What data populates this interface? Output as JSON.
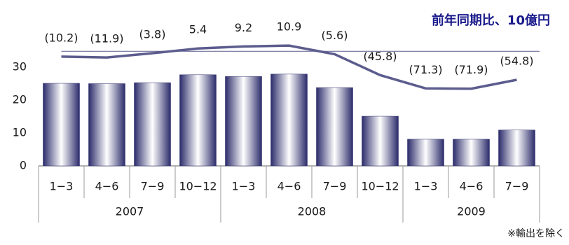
{
  "chart_data": {
    "type": "bar-line",
    "title": "前年同期比、10億円",
    "note": "※輸出を除く",
    "groups": [
      {
        "name": "2007",
        "categories": [
          "1−3",
          "4−6",
          "7−9",
          "10−12"
        ]
      },
      {
        "name": "2008",
        "categories": [
          "1−3",
          "4−6",
          "7−9",
          "10−12"
        ]
      },
      {
        "name": "2009",
        "categories": [
          "1−3",
          "4−6",
          "7−9"
        ]
      }
    ],
    "ylim": [
      0,
      30
    ],
    "yticks": [
      0,
      10,
      20,
      30
    ],
    "y2lim": [
      -220,
      50
    ],
    "series": [
      {
        "type": "bar",
        "color": "#2b2b6b",
        "values": [
          25.1,
          25.0,
          25.3,
          27.7,
          27.2,
          27.9,
          23.8,
          15.1,
          8.1,
          8.1,
          10.9
        ]
      },
      {
        "type": "line",
        "axis": "y2",
        "color": "#5c5c8e",
        "values": [
          -10.2,
          -11.9,
          -3.8,
          5.4,
          9.2,
          10.9,
          -5.6,
          -45.8,
          -71.3,
          -71.9,
          -54.8
        ],
        "value_labels": [
          "(10.2)",
          "(11.9)",
          "(3.8)",
          "5.4",
          "9.2",
          "10.9",
          "(5.6)",
          "(45.8)",
          "(71.3)",
          "(71.9)",
          "(54.8)"
        ]
      }
    ]
  }
}
